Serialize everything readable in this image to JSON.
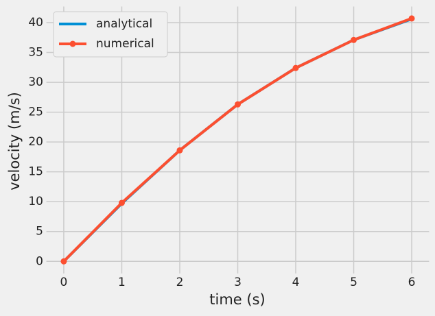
{
  "chart_data": {
    "type": "line",
    "xlabel": "time (s)",
    "ylabel": "velocity (m/s)",
    "x": [
      0,
      1,
      2,
      3,
      4,
      5,
      6
    ],
    "series": [
      {
        "name": "analytical",
        "color": "#008fd5",
        "values": [
          0,
          9.7,
          18.6,
          26.3,
          32.4,
          37.1,
          40.6
        ],
        "marker": false
      },
      {
        "name": "numerical",
        "color": "#fc4f30",
        "values": [
          0,
          9.8,
          18.6,
          26.3,
          32.4,
          37.1,
          40.7
        ],
        "marker": true
      }
    ],
    "xlim": [
      -0.3,
      6.3
    ],
    "xticks": [
      0,
      1,
      2,
      3,
      4,
      5,
      6
    ],
    "ylim": [
      -2.035,
      42.7
    ],
    "yticks": [
      0,
      5,
      10,
      15,
      20,
      25,
      30,
      35,
      40
    ],
    "grid": true,
    "legend": "upper left"
  }
}
